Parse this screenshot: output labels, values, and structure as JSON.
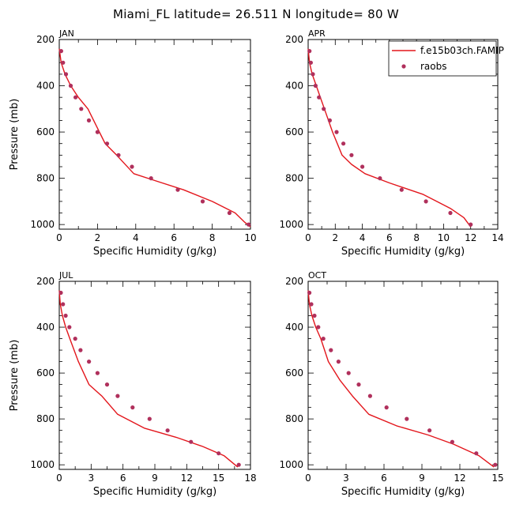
{
  "figure": {
    "title": "Miami_FL  latitude= 26.511 N longitude= 80 W"
  },
  "legend": {
    "model_label": "f.e15b03ch.FAMIP",
    "obs_label": "raobs"
  },
  "colors": {
    "model_line": "#e3161c",
    "obs_marker": "#b0305c",
    "axis": "#000000",
    "background": "#ffffff"
  },
  "chart_data": [
    {
      "type": "line",
      "title": "JAN",
      "xlabel": "Specific Humidity (g/kg)",
      "ylabel": "Pressure (mb)",
      "xlim": [
        0,
        10
      ],
      "ylim": [
        1020,
        200
      ],
      "xticks": [
        0,
        2,
        4,
        6,
        8,
        10
      ],
      "yticks": [
        200,
        400,
        600,
        800,
        1000
      ],
      "y_inverted": true,
      "series": [
        {
          "name": "f.e15b03ch.FAMIP",
          "kind": "line",
          "x": [
            0.0,
            0.1,
            0.3,
            0.6,
            1.0,
            1.5,
            2.1,
            2.4,
            3.0,
            3.9,
            5.0,
            6.5,
            8.0,
            9.2,
            9.7,
            10.0
          ],
          "y": [
            240,
            300,
            350,
            400,
            450,
            500,
            600,
            650,
            700,
            780,
            810,
            850,
            900,
            950,
            990,
            1010
          ]
        },
        {
          "name": "raobs",
          "kind": "scatter",
          "x": [
            0.1,
            0.2,
            0.35,
            0.6,
            0.85,
            1.15,
            1.55,
            2.0,
            2.5,
            3.1,
            3.8,
            4.8,
            6.2,
            7.5,
            8.9,
            9.9
          ],
          "y": [
            250,
            300,
            350,
            400,
            450,
            500,
            550,
            600,
            650,
            700,
            750,
            800,
            850,
            900,
            950,
            1000
          ]
        }
      ]
    },
    {
      "type": "line",
      "title": "APR",
      "xlabel": "Specific Humidity (g/kg)",
      "ylabel": "",
      "xlim": [
        0,
        14
      ],
      "ylim": [
        1020,
        200
      ],
      "xticks": [
        0,
        2,
        4,
        6,
        8,
        10,
        12,
        14
      ],
      "yticks": [
        200,
        400,
        600,
        800,
        1000
      ],
      "y_inverted": true,
      "series": [
        {
          "name": "f.e15b03ch.FAMIP",
          "kind": "line",
          "x": [
            0.0,
            0.1,
            0.3,
            0.6,
            0.9,
            1.2,
            1.8,
            2.5,
            3.2,
            4.2,
            6.0,
            8.5,
            10.5,
            11.5,
            12.0
          ],
          "y": [
            240,
            300,
            350,
            400,
            450,
            500,
            600,
            700,
            740,
            780,
            820,
            870,
            930,
            970,
            1010
          ]
        },
        {
          "name": "raobs",
          "kind": "scatter",
          "x": [
            0.1,
            0.2,
            0.35,
            0.55,
            0.8,
            1.15,
            1.6,
            2.1,
            2.6,
            3.2,
            4.0,
            5.3,
            6.9,
            8.7,
            10.5,
            12.0
          ],
          "y": [
            250,
            300,
            350,
            400,
            450,
            500,
            550,
            600,
            650,
            700,
            750,
            800,
            850,
            900,
            950,
            1000
          ]
        }
      ]
    },
    {
      "type": "line",
      "title": "JUL",
      "xlabel": "Specific Humidity (g/kg)",
      "ylabel": "Pressure (mb)",
      "xlim": [
        0,
        18
      ],
      "ylim": [
        1020,
        200
      ],
      "xticks": [
        0,
        3,
        6,
        9,
        12,
        15,
        18
      ],
      "yticks": [
        200,
        400,
        600,
        800,
        1000
      ],
      "y_inverted": true,
      "series": [
        {
          "name": "f.e15b03ch.FAMIP",
          "kind": "line",
          "x": [
            0.0,
            0.1,
            0.3,
            0.6,
            1.0,
            1.8,
            2.8,
            4.0,
            5.5,
            8.0,
            11.0,
            13.5,
            15.5,
            16.8
          ],
          "y": [
            240,
            300,
            350,
            400,
            450,
            550,
            650,
            700,
            780,
            840,
            880,
            920,
            960,
            1010
          ]
        },
        {
          "name": "raobs",
          "kind": "scatter",
          "x": [
            0.15,
            0.35,
            0.6,
            0.95,
            1.5,
            2.0,
            2.8,
            3.6,
            4.5,
            5.5,
            6.9,
            8.5,
            10.2,
            12.4,
            15.0,
            16.9
          ],
          "y": [
            250,
            300,
            350,
            400,
            450,
            500,
            550,
            600,
            650,
            700,
            750,
            800,
            850,
            900,
            950,
            1000
          ]
        }
      ]
    },
    {
      "type": "line",
      "title": "OCT",
      "xlabel": "Specific Humidity (g/kg)",
      "ylabel": "",
      "xlim": [
        0,
        15
      ],
      "ylim": [
        1020,
        200
      ],
      "xticks": [
        0,
        3,
        6,
        9,
        12,
        15
      ],
      "yticks": [
        200,
        400,
        600,
        800,
        1000
      ],
      "y_inverted": true,
      "series": [
        {
          "name": "f.e15b03ch.FAMIP",
          "kind": "line",
          "x": [
            0.0,
            0.1,
            0.3,
            0.6,
            1.0,
            1.6,
            2.5,
            3.5,
            4.8,
            7.0,
            9.5,
            11.5,
            13.5,
            14.7
          ],
          "y": [
            240,
            300,
            350,
            400,
            450,
            550,
            630,
            700,
            780,
            830,
            870,
            910,
            960,
            1010
          ]
        },
        {
          "name": "raobs",
          "kind": "scatter",
          "x": [
            0.1,
            0.25,
            0.5,
            0.8,
            1.2,
            1.8,
            2.4,
            3.2,
            4.0,
            4.9,
            6.2,
            7.8,
            9.6,
            11.4,
            13.3,
            14.8
          ],
          "y": [
            250,
            300,
            350,
            400,
            450,
            500,
            550,
            600,
            650,
            700,
            750,
            800,
            850,
            900,
            950,
            1000
          ]
        }
      ]
    }
  ]
}
